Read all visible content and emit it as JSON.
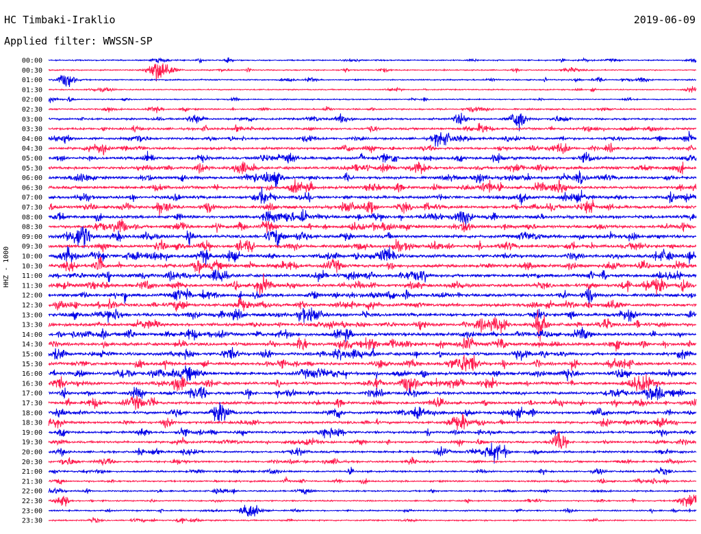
{
  "header": {
    "station": "HC Timbaki-Iraklio",
    "date": "2019-06-09",
    "filter": "Applied filter: WWSSN-SP"
  },
  "colors": {
    "trace_a": "#0000e6",
    "trace_b": "#ff1a4d",
    "text": "#000000",
    "background": "#ffffff"
  },
  "chart_data": {
    "type": "line",
    "subtype": "helicorder",
    "ylabel": "HHZ - 1000",
    "row_interval_minutes": 30,
    "row_labels": [
      "00:00",
      "00:30",
      "01:00",
      "01:30",
      "02:00",
      "02:30",
      "03:00",
      "03:30",
      "04:00",
      "04:30",
      "05:00",
      "05:30",
      "06:00",
      "06:30",
      "07:00",
      "07:30",
      "08:00",
      "08:30",
      "09:00",
      "09:30",
      "10:00",
      "10:30",
      "11:00",
      "11:30",
      "12:00",
      "12:30",
      "13:00",
      "13:30",
      "14:00",
      "14:30",
      "15:00",
      "15:30",
      "16:00",
      "16:30",
      "17:00",
      "17:30",
      "18:00",
      "18:30",
      "19:00",
      "19:30",
      "20:00",
      "20:30",
      "21:00",
      "21:30",
      "22:00",
      "22:30",
      "23:00",
      "23:30"
    ],
    "row_colors": [
      "trace_a",
      "trace_b"
    ],
    "noise_level": [
      0.25,
      0.22,
      0.25,
      0.22,
      0.2,
      0.35,
      0.5,
      0.6,
      0.65,
      0.7,
      0.75,
      0.8,
      0.8,
      0.85,
      0.85,
      0.9,
      0.9,
      0.9,
      0.95,
      0.95,
      0.95,
      0.95,
      0.95,
      0.95,
      0.95,
      0.95,
      0.95,
      0.95,
      0.95,
      0.95,
      0.9,
      0.9,
      0.9,
      0.9,
      0.85,
      0.8,
      0.75,
      0.7,
      0.65,
      0.6,
      0.55,
      0.5,
      0.45,
      0.4,
      0.35,
      0.3,
      0.3,
      0.3
    ]
  }
}
